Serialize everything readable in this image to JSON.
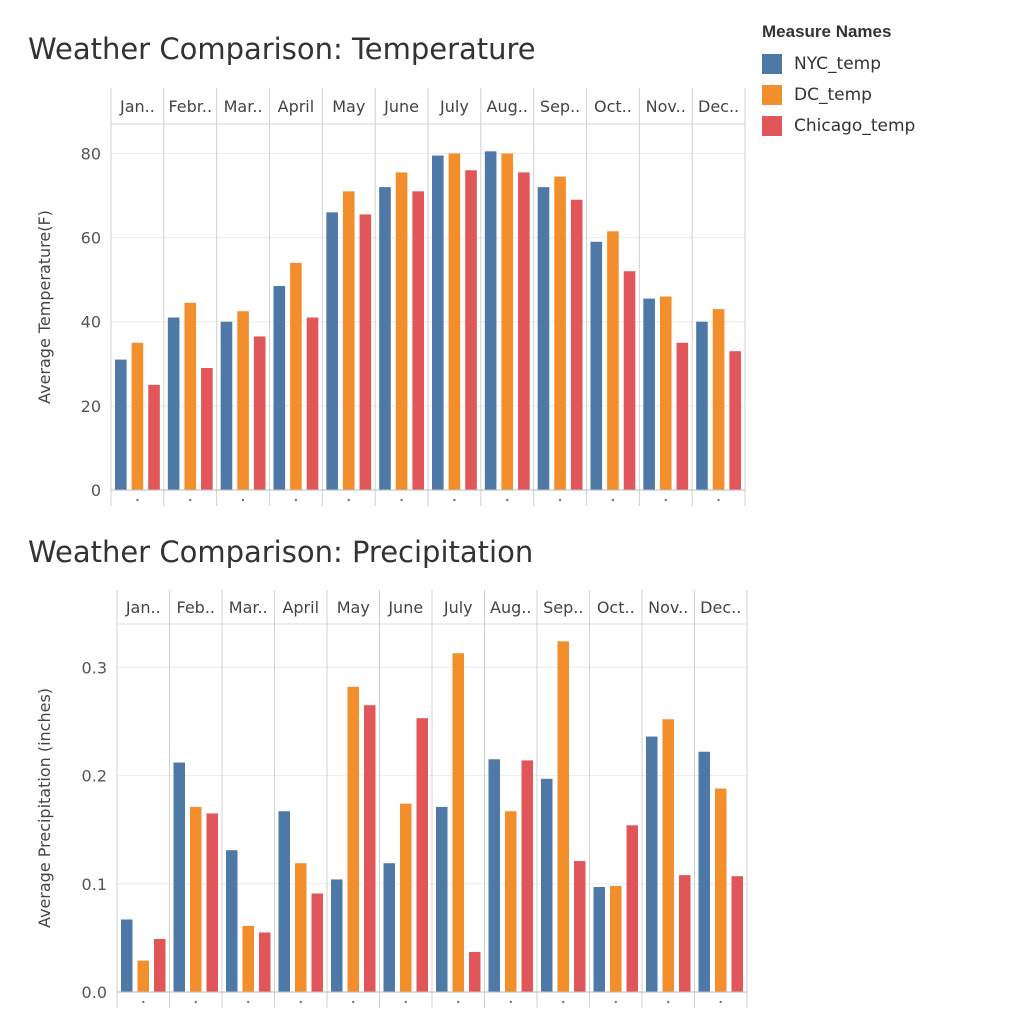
{
  "legend": {
    "title": "Measure Names",
    "items": [
      {
        "name": "NYC_temp",
        "color": "#4e79a7"
      },
      {
        "name": "DC_temp",
        "color": "#f28e2b"
      },
      {
        "name": "Chicago_temp",
        "color": "#e15759"
      }
    ]
  },
  "chart_data": [
    {
      "type": "bar",
      "title": "Weather Comparison: Temperature",
      "ylabel": "Average Temperature(F)",
      "xlabel": "",
      "categories": [
        "Jan..",
        "Febr..",
        "Mar..",
        "April",
        "May",
        "June",
        "July",
        "Aug..",
        "Sep..",
        "Oct..",
        "Nov..",
        "Dec.."
      ],
      "series": [
        {
          "name": "NYC_temp",
          "color": "#4e79a7",
          "values": [
            31,
            41,
            40,
            48.5,
            66,
            72,
            79.5,
            80.5,
            72,
            59,
            45.5,
            40
          ]
        },
        {
          "name": "DC_temp",
          "color": "#f28e2b",
          "values": [
            35,
            44.5,
            42.5,
            54,
            71,
            75.5,
            80,
            80,
            74.5,
            61.5,
            46,
            43
          ]
        },
        {
          "name": "Chicago_temp",
          "color": "#e15759",
          "values": [
            25,
            29,
            36.5,
            41,
            65.5,
            71,
            76,
            75.5,
            69,
            52,
            35,
            33
          ]
        }
      ],
      "yticks": [
        0,
        20,
        40,
        60,
        80
      ],
      "ytick_labels": [
        "0",
        "20",
        "40",
        "60",
        "80"
      ],
      "ylim": [
        0,
        87
      ],
      "grid": true,
      "legend": "top-right"
    },
    {
      "type": "bar",
      "title": "Weather Comparison: Precipitation",
      "ylabel": "Average Precipitation (inches)",
      "xlabel": "",
      "categories": [
        "Jan..",
        "Feb..",
        "Mar..",
        "April",
        "May",
        "June",
        "July",
        "Aug..",
        "Sep..",
        "Oct..",
        "Nov..",
        "Dec.."
      ],
      "series": [
        {
          "name": "NYC_temp",
          "color": "#4e79a7",
          "values": [
            0.067,
            0.212,
            0.131,
            0.167,
            0.104,
            0.119,
            0.171,
            0.215,
            0.197,
            0.097,
            0.236,
            0.222
          ]
        },
        {
          "name": "DC_temp",
          "color": "#f28e2b",
          "values": [
            0.029,
            0.171,
            0.061,
            0.119,
            0.282,
            0.174,
            0.313,
            0.167,
            0.324,
            0.098,
            0.252,
            0.188
          ]
        },
        {
          "name": "Chicago_temp",
          "color": "#e15759",
          "values": [
            0.049,
            0.165,
            0.055,
            0.091,
            0.265,
            0.253,
            0.037,
            0.214,
            0.121,
            0.154,
            0.108,
            0.107
          ]
        }
      ],
      "yticks": [
        0.0,
        0.1,
        0.2,
        0.3
      ],
      "ytick_labels": [
        "0.0",
        "0.1",
        "0.2",
        "0.3"
      ],
      "ylim": [
        0,
        0.34
      ],
      "grid": true,
      "legend": "top-right"
    }
  ]
}
